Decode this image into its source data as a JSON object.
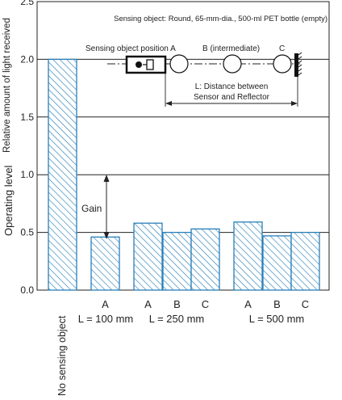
{
  "chart_data": {
    "type": "bar",
    "ylabel_top": "Relative amount of light received",
    "ylabel_bottom": "Operating level",
    "ylim": [
      0,
      2.5
    ],
    "yticks": [
      "0.0",
      "0.5",
      "1.0",
      "1.5",
      "2.0",
      "2.5"
    ],
    "bar_values": [
      2.0,
      0.46,
      0.58,
      0.5,
      0.53,
      0.59,
      0.47,
      0.5
    ],
    "category_letters": [
      "A",
      "A",
      "B",
      "C",
      "A",
      "B",
      "C"
    ],
    "no_object_label": "No sensing object",
    "group_labels": [
      "L = 100 mm",
      "L = 250 mm",
      "L = 500 mm"
    ],
    "colors": {
      "bar_stroke": "#2a7fb8",
      "bar_hatch": "#2a7fb8",
      "bar_fill": "#ffffff"
    },
    "annotations": {
      "sensing_object_note": "Sensing object: Round, 65-mm-dia., 500-ml PET bottle (empty)",
      "position_a": "Sensing object position A",
      "position_b": "B (intermediate)",
      "position_c": "C",
      "distance_line1": "L: Distance between",
      "distance_line2": "Sensor and Reflector",
      "gain": "Gain"
    }
  }
}
